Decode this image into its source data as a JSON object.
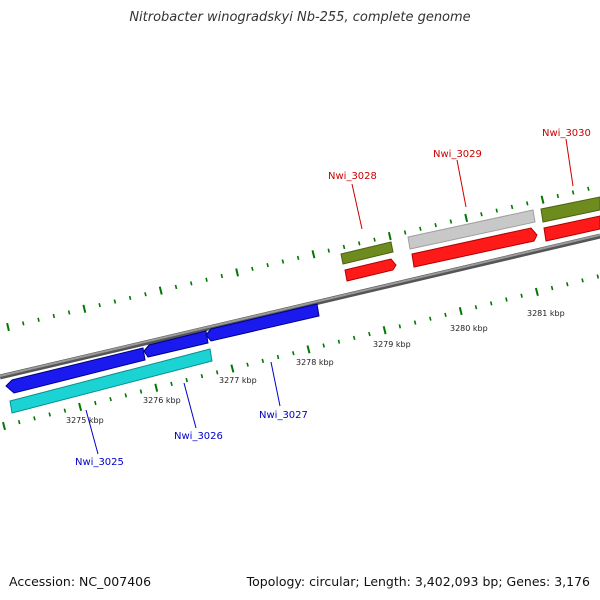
{
  "title": "Nitrobacter winogradskyi Nb-255, complete genome",
  "accession": "Accession: NC_007406",
  "summary": "Topology: circular; Length: 3,402,093 bp; Genes: 3,176",
  "colors": {
    "backbone": "#808080",
    "tick": "#007700",
    "label_plus": "#cc0000",
    "label_minus": "#0000cc",
    "olive": "#6e8c1e",
    "red": "#ff0000",
    "gray": "#c8c8c8",
    "blue": "#1a1aee",
    "cyan": "#1cd3d3"
  },
  "kbp_labels": [
    {
      "text": "3275 kbp",
      "kbp": 3275
    },
    {
      "text": "3276 kbp",
      "kbp": 3276
    },
    {
      "text": "3277 kbp",
      "kbp": 3277
    },
    {
      "text": "3278 kbp",
      "kbp": 3278
    },
    {
      "text": "3279 kbp",
      "kbp": 3279
    },
    {
      "text": "3280 kbp",
      "kbp": 3280
    },
    {
      "text": "3281 kbp",
      "kbp": 3281
    }
  ],
  "gene_labels": [
    {
      "text": "Nwi_3025",
      "strand": "minus"
    },
    {
      "text": "Nwi_3026",
      "strand": "minus"
    },
    {
      "text": "Nwi_3027",
      "strand": "minus"
    },
    {
      "text": "Nwi_3028",
      "strand": "plus"
    },
    {
      "text": "Nwi_3029",
      "strand": "plus"
    },
    {
      "text": "Nwi_3030",
      "strand": "plus"
    }
  ]
}
